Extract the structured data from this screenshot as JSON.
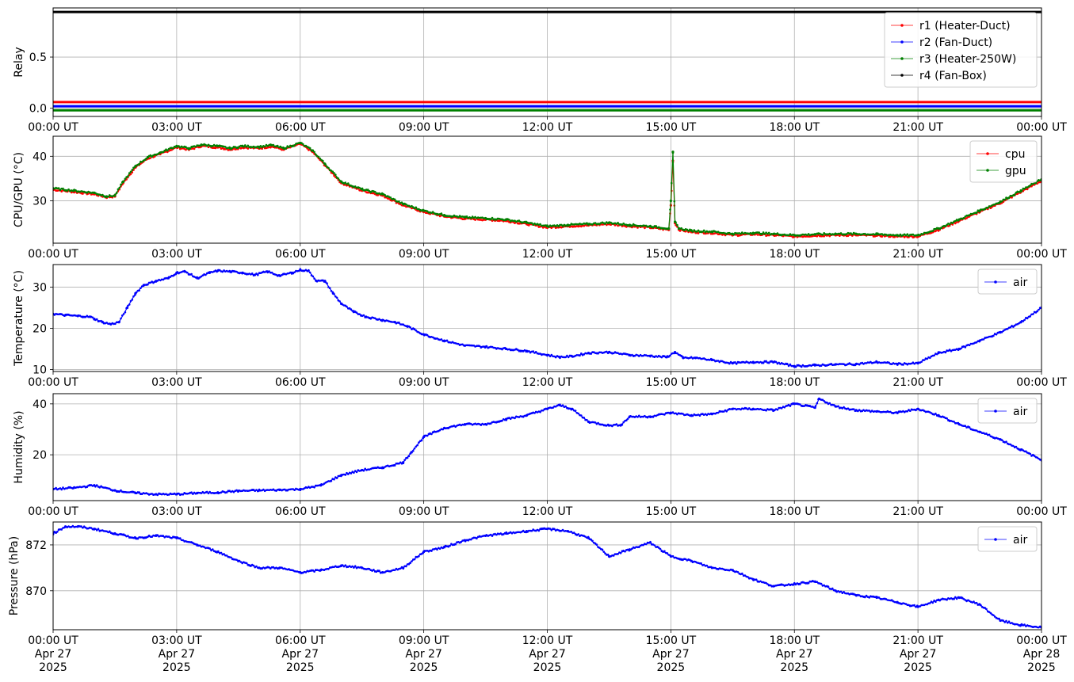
{
  "x_ticks": [
    "00:00 UT",
    "03:00 UT",
    "06:00 UT",
    "09:00 UT",
    "12:00 UT",
    "15:00 UT",
    "18:00 UT",
    "21:00 UT",
    "00:00 UT"
  ],
  "x_date_lines": [
    "Apr 27",
    "Apr 27",
    "Apr 27",
    "Apr 27",
    "Apr 27",
    "Apr 27",
    "Apr 27",
    "Apr 27",
    "Apr 28"
  ],
  "x_year_lines": [
    "2025",
    "2025",
    "2025",
    "2025",
    "2025",
    "2025",
    "2025",
    "2025",
    "2025"
  ],
  "chart_data": [
    {
      "type": "line",
      "ylabel": "Relay",
      "x_unit": "hours since 00:00 UT Apr 27 2025",
      "xlim": [
        0,
        24
      ],
      "ylim": [
        -0.08,
        0.98
      ],
      "yticks": [
        0.0,
        0.5
      ],
      "ytick_labels": [
        "0.0",
        "0.5"
      ],
      "grid": true,
      "legend": "top-right",
      "series": [
        {
          "name": "r1 (Heater-Duct)",
          "color": "#ff0000",
          "x": [
            0,
            24
          ],
          "y": [
            0.06,
            0.06
          ]
        },
        {
          "name": "r2 (Fan-Duct)",
          "color": "#0000ff",
          "x": [
            0,
            24
          ],
          "y": [
            0.02,
            0.02
          ]
        },
        {
          "name": "r3 (Heater-250W)",
          "color": "#008000",
          "x": [
            0,
            24
          ],
          "y": [
            -0.02,
            -0.02
          ]
        },
        {
          "name": "r4 (Fan-Box)",
          "color": "#000000",
          "x": [
            0,
            24
          ],
          "y": [
            0.94,
            0.94
          ]
        }
      ]
    },
    {
      "type": "scatter",
      "ylabel": "CPU/GPU (°C)",
      "xlim": [
        0,
        24
      ],
      "ylim": [
        20.5,
        44.5
      ],
      "yticks": [
        30,
        40
      ],
      "ytick_labels": [
        "30",
        "40"
      ],
      "grid": true,
      "legend": "top-right",
      "series": [
        {
          "name": "cpu",
          "color": "#ff0000",
          "x": [
            0,
            0.5,
            1.0,
            1.3,
            1.5,
            1.7,
            2.0,
            2.3,
            2.6,
            3.0,
            3.3,
            3.6,
            4.0,
            4.3,
            4.6,
            5.0,
            5.3,
            5.6,
            6.0,
            6.3,
            6.6,
            7.0,
            7.5,
            8.0,
            8.5,
            9.0,
            9.5,
            10.0,
            10.5,
            11.0,
            11.5,
            12.0,
            12.5,
            13.0,
            13.5,
            14.0,
            14.5,
            14.95,
            15.0,
            15.05,
            15.1,
            15.2,
            15.5,
            16.0,
            16.5,
            17.0,
            17.5,
            18.0,
            18.5,
            19.0,
            19.5,
            20.0,
            20.5,
            21.0,
            21.5,
            22.0,
            22.5,
            23.0,
            23.5,
            24.0
          ],
          "y": [
            32.5,
            32.0,
            31.5,
            30.8,
            31.0,
            34.0,
            37.5,
            39.5,
            40.5,
            42.0,
            41.5,
            42.3,
            42.0,
            41.5,
            42.0,
            41.8,
            42.2,
            41.5,
            42.8,
            41.0,
            38.0,
            34.0,
            32.3,
            31.2,
            29.0,
            27.5,
            26.5,
            26.0,
            25.8,
            25.5,
            24.8,
            24.0,
            24.3,
            24.5,
            24.8,
            24.3,
            24.0,
            23.5,
            29.0,
            39.0,
            25.0,
            23.5,
            23.0,
            22.8,
            22.3,
            22.5,
            22.3,
            22.0,
            22.2,
            22.3,
            22.3,
            22.2,
            22.0,
            22.0,
            23.5,
            25.5,
            27.5,
            29.5,
            32.0,
            34.5
          ]
        },
        {
          "name": "gpu",
          "color": "#008000",
          "x": [
            0,
            0.5,
            1.0,
            1.3,
            1.5,
            1.7,
            2.0,
            2.3,
            2.6,
            3.0,
            3.3,
            3.6,
            4.0,
            4.3,
            4.6,
            5.0,
            5.3,
            5.6,
            6.0,
            6.3,
            6.6,
            7.0,
            7.5,
            8.0,
            8.5,
            9.0,
            9.5,
            10.0,
            10.5,
            11.0,
            11.5,
            12.0,
            12.5,
            13.0,
            13.5,
            14.0,
            14.5,
            14.95,
            15.0,
            15.05,
            15.1,
            15.2,
            15.5,
            16.0,
            16.5,
            17.0,
            17.5,
            18.0,
            18.5,
            19.0,
            19.5,
            20.0,
            20.5,
            21.0,
            21.5,
            22.0,
            22.5,
            23.0,
            23.5,
            24.0
          ],
          "y": [
            32.8,
            32.3,
            31.8,
            31.0,
            31.2,
            34.3,
            37.8,
            39.8,
            40.8,
            42.3,
            41.8,
            42.6,
            42.3,
            41.8,
            42.3,
            42.1,
            42.5,
            41.8,
            43.0,
            41.3,
            38.3,
            34.3,
            32.6,
            31.5,
            29.3,
            27.8,
            26.8,
            26.3,
            26.1,
            25.8,
            25.1,
            24.3,
            24.6,
            24.8,
            25.1,
            24.6,
            24.3,
            23.8,
            30.0,
            41.0,
            25.3,
            23.8,
            23.3,
            23.1,
            22.6,
            22.8,
            22.6,
            22.3,
            22.5,
            22.6,
            22.6,
            22.5,
            22.3,
            22.3,
            23.8,
            25.8,
            27.8,
            29.8,
            32.3,
            34.8
          ]
        }
      ]
    },
    {
      "type": "scatter",
      "ylabel": "Temperature (°C)",
      "xlim": [
        0,
        24
      ],
      "ylim": [
        9.5,
        35.5
      ],
      "yticks": [
        10,
        20,
        30
      ],
      "ytick_labels": [
        "10",
        "20",
        "30"
      ],
      "grid": true,
      "legend": "top-right",
      "series": [
        {
          "name": "air",
          "color": "#0000ff",
          "x": [
            0,
            0.3,
            0.6,
            0.9,
            1.0,
            1.2,
            1.4,
            1.6,
            1.8,
            2.0,
            2.2,
            2.5,
            2.8,
            3.0,
            3.2,
            3.5,
            3.8,
            4.0,
            4.3,
            4.6,
            4.9,
            5.2,
            5.5,
            5.8,
            6.0,
            6.2,
            6.4,
            6.6,
            6.8,
            7.0,
            7.3,
            7.6,
            8.0,
            8.3,
            8.6,
            9.0,
            9.5,
            10.0,
            10.5,
            11.0,
            11.5,
            12.0,
            12.3,
            12.6,
            13.0,
            13.5,
            14.0,
            14.5,
            14.9,
            15.1,
            15.3,
            15.6,
            16.0,
            16.5,
            17.0,
            17.5,
            18.0,
            18.5,
            19.0,
            19.5,
            20.0,
            20.5,
            21.0,
            21.5,
            22.0,
            22.5,
            23.0,
            23.5,
            24.0
          ],
          "y": [
            23.5,
            23.2,
            23.0,
            22.8,
            22.3,
            21.5,
            21.0,
            21.5,
            25.0,
            28.5,
            30.5,
            31.5,
            32.2,
            33.5,
            33.8,
            32.2,
            33.5,
            34.0,
            33.8,
            33.5,
            33.0,
            33.8,
            32.8,
            33.5,
            34.2,
            34.0,
            31.5,
            31.5,
            28.5,
            26.0,
            24.0,
            22.8,
            22.0,
            21.5,
            20.5,
            18.5,
            17.0,
            15.8,
            15.5,
            15.0,
            14.5,
            13.5,
            13.0,
            13.2,
            14.0,
            14.2,
            13.5,
            13.3,
            13.0,
            14.2,
            12.8,
            12.8,
            12.3,
            11.5,
            11.8,
            11.8,
            10.8,
            11.0,
            11.2,
            11.3,
            11.8,
            11.3,
            11.5,
            14.0,
            15.0,
            17.0,
            19.0,
            21.5,
            25.0
          ]
        }
      ]
    },
    {
      "type": "scatter",
      "ylabel": "Humidity (%)",
      "xlim": [
        0,
        24
      ],
      "ylim": [
        2,
        44
      ],
      "yticks": [
        20,
        40
      ],
      "ytick_labels": [
        "20",
        "40"
      ],
      "grid": true,
      "legend": "top-right",
      "series": [
        {
          "name": "air",
          "color": "#0000ff",
          "x": [
            0,
            0.5,
            1.0,
            1.5,
            2.0,
            2.5,
            3.0,
            3.5,
            4.0,
            4.5,
            5.0,
            5.5,
            6.0,
            6.5,
            7.0,
            7.5,
            8.0,
            8.5,
            8.7,
            9.0,
            9.5,
            10.0,
            10.5,
            11.0,
            11.5,
            12.0,
            12.3,
            12.6,
            13.0,
            13.5,
            13.8,
            14.0,
            14.5,
            15.0,
            15.5,
            16.0,
            16.5,
            17.0,
            17.5,
            18.0,
            18.5,
            18.6,
            19.0,
            19.5,
            20.0,
            20.5,
            21.0,
            21.5,
            22.0,
            22.5,
            23.0,
            23.5,
            24.0
          ],
          "y": [
            6.5,
            7.0,
            8.0,
            6.0,
            5.0,
            4.5,
            4.5,
            5.0,
            5.2,
            5.8,
            6.0,
            6.2,
            6.5,
            8.0,
            12.0,
            14.0,
            15.0,
            17.0,
            21.0,
            27.0,
            30.5,
            32.0,
            32.0,
            34.0,
            35.5,
            38.0,
            39.5,
            38.0,
            33.0,
            31.5,
            31.8,
            35.0,
            35.0,
            36.5,
            35.5,
            36.0,
            38.0,
            38.0,
            37.5,
            40.0,
            38.5,
            42.0,
            39.0,
            37.5,
            37.0,
            36.5,
            38.0,
            35.5,
            32.0,
            29.0,
            26.0,
            22.0,
            18.0
          ]
        }
      ]
    },
    {
      "type": "scatter",
      "ylabel": "Pressure (hPa)",
      "xlim": [
        0,
        24
      ],
      "ylim": [
        868.3,
        873.0
      ],
      "yticks": [
        870,
        872
      ],
      "ytick_labels": [
        "870",
        "872"
      ],
      "grid": true,
      "legend": "top-right",
      "series": [
        {
          "name": "air",
          "color": "#0000ff",
          "x": [
            0,
            0.3,
            0.6,
            1.0,
            1.5,
            2.0,
            2.5,
            3.0,
            3.5,
            4.0,
            4.5,
            5.0,
            5.5,
            6.0,
            6.5,
            7.0,
            7.5,
            8.0,
            8.5,
            9.0,
            9.5,
            10.0,
            10.5,
            11.0,
            11.5,
            12.0,
            12.5,
            13.0,
            13.5,
            14.0,
            14.5,
            15.0,
            15.5,
            16.0,
            16.5,
            17.0,
            17.5,
            18.0,
            18.5,
            19.0,
            19.5,
            20.0,
            20.5,
            21.0,
            21.5,
            22.0,
            22.5,
            23.0,
            23.5,
            24.0
          ],
          "y": [
            872.5,
            872.8,
            872.8,
            872.7,
            872.5,
            872.3,
            872.4,
            872.3,
            872.0,
            871.7,
            871.3,
            871.0,
            871.0,
            870.8,
            870.9,
            871.1,
            871.0,
            870.8,
            871.0,
            871.7,
            871.9,
            872.2,
            872.4,
            872.5,
            872.6,
            872.7,
            872.6,
            872.3,
            871.5,
            871.8,
            872.1,
            871.5,
            871.3,
            871.0,
            870.9,
            870.5,
            870.2,
            870.3,
            870.4,
            870.0,
            869.8,
            869.7,
            869.5,
            869.3,
            869.6,
            869.7,
            869.4,
            868.7,
            868.5,
            868.4
          ]
        }
      ]
    }
  ]
}
